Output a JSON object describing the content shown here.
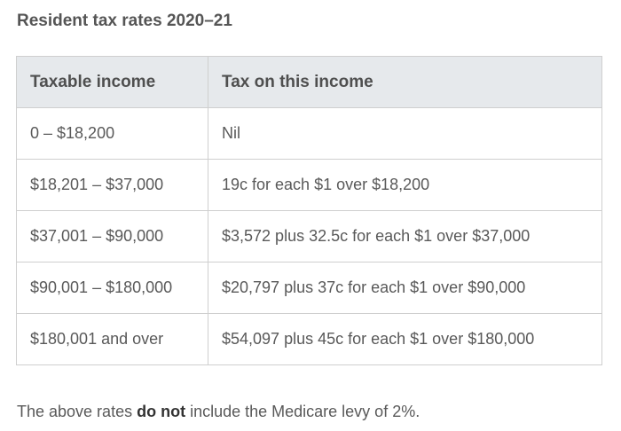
{
  "title": "Resident tax rates 2020–21",
  "table": {
    "headers": [
      "Taxable income",
      "Tax on this income"
    ],
    "rows": [
      [
        "0 – $18,200",
        "Nil"
      ],
      [
        "$18,201 – $37,000",
        "19c for each $1 over $18,200"
      ],
      [
        "$37,001 – $90,000",
        "$3,572 plus 32.5c for each $1 over $37,000"
      ],
      [
        "$90,001 – $180,000",
        "$20,797 plus 37c for each $1 over $90,000"
      ],
      [
        "$180,001 and over",
        "$54,097 plus 45c for each $1 over $180,000"
      ]
    ]
  },
  "note": {
    "before": "The above rates ",
    "emphasis": "do not",
    "after": " include the Medicare levy of 2%."
  }
}
